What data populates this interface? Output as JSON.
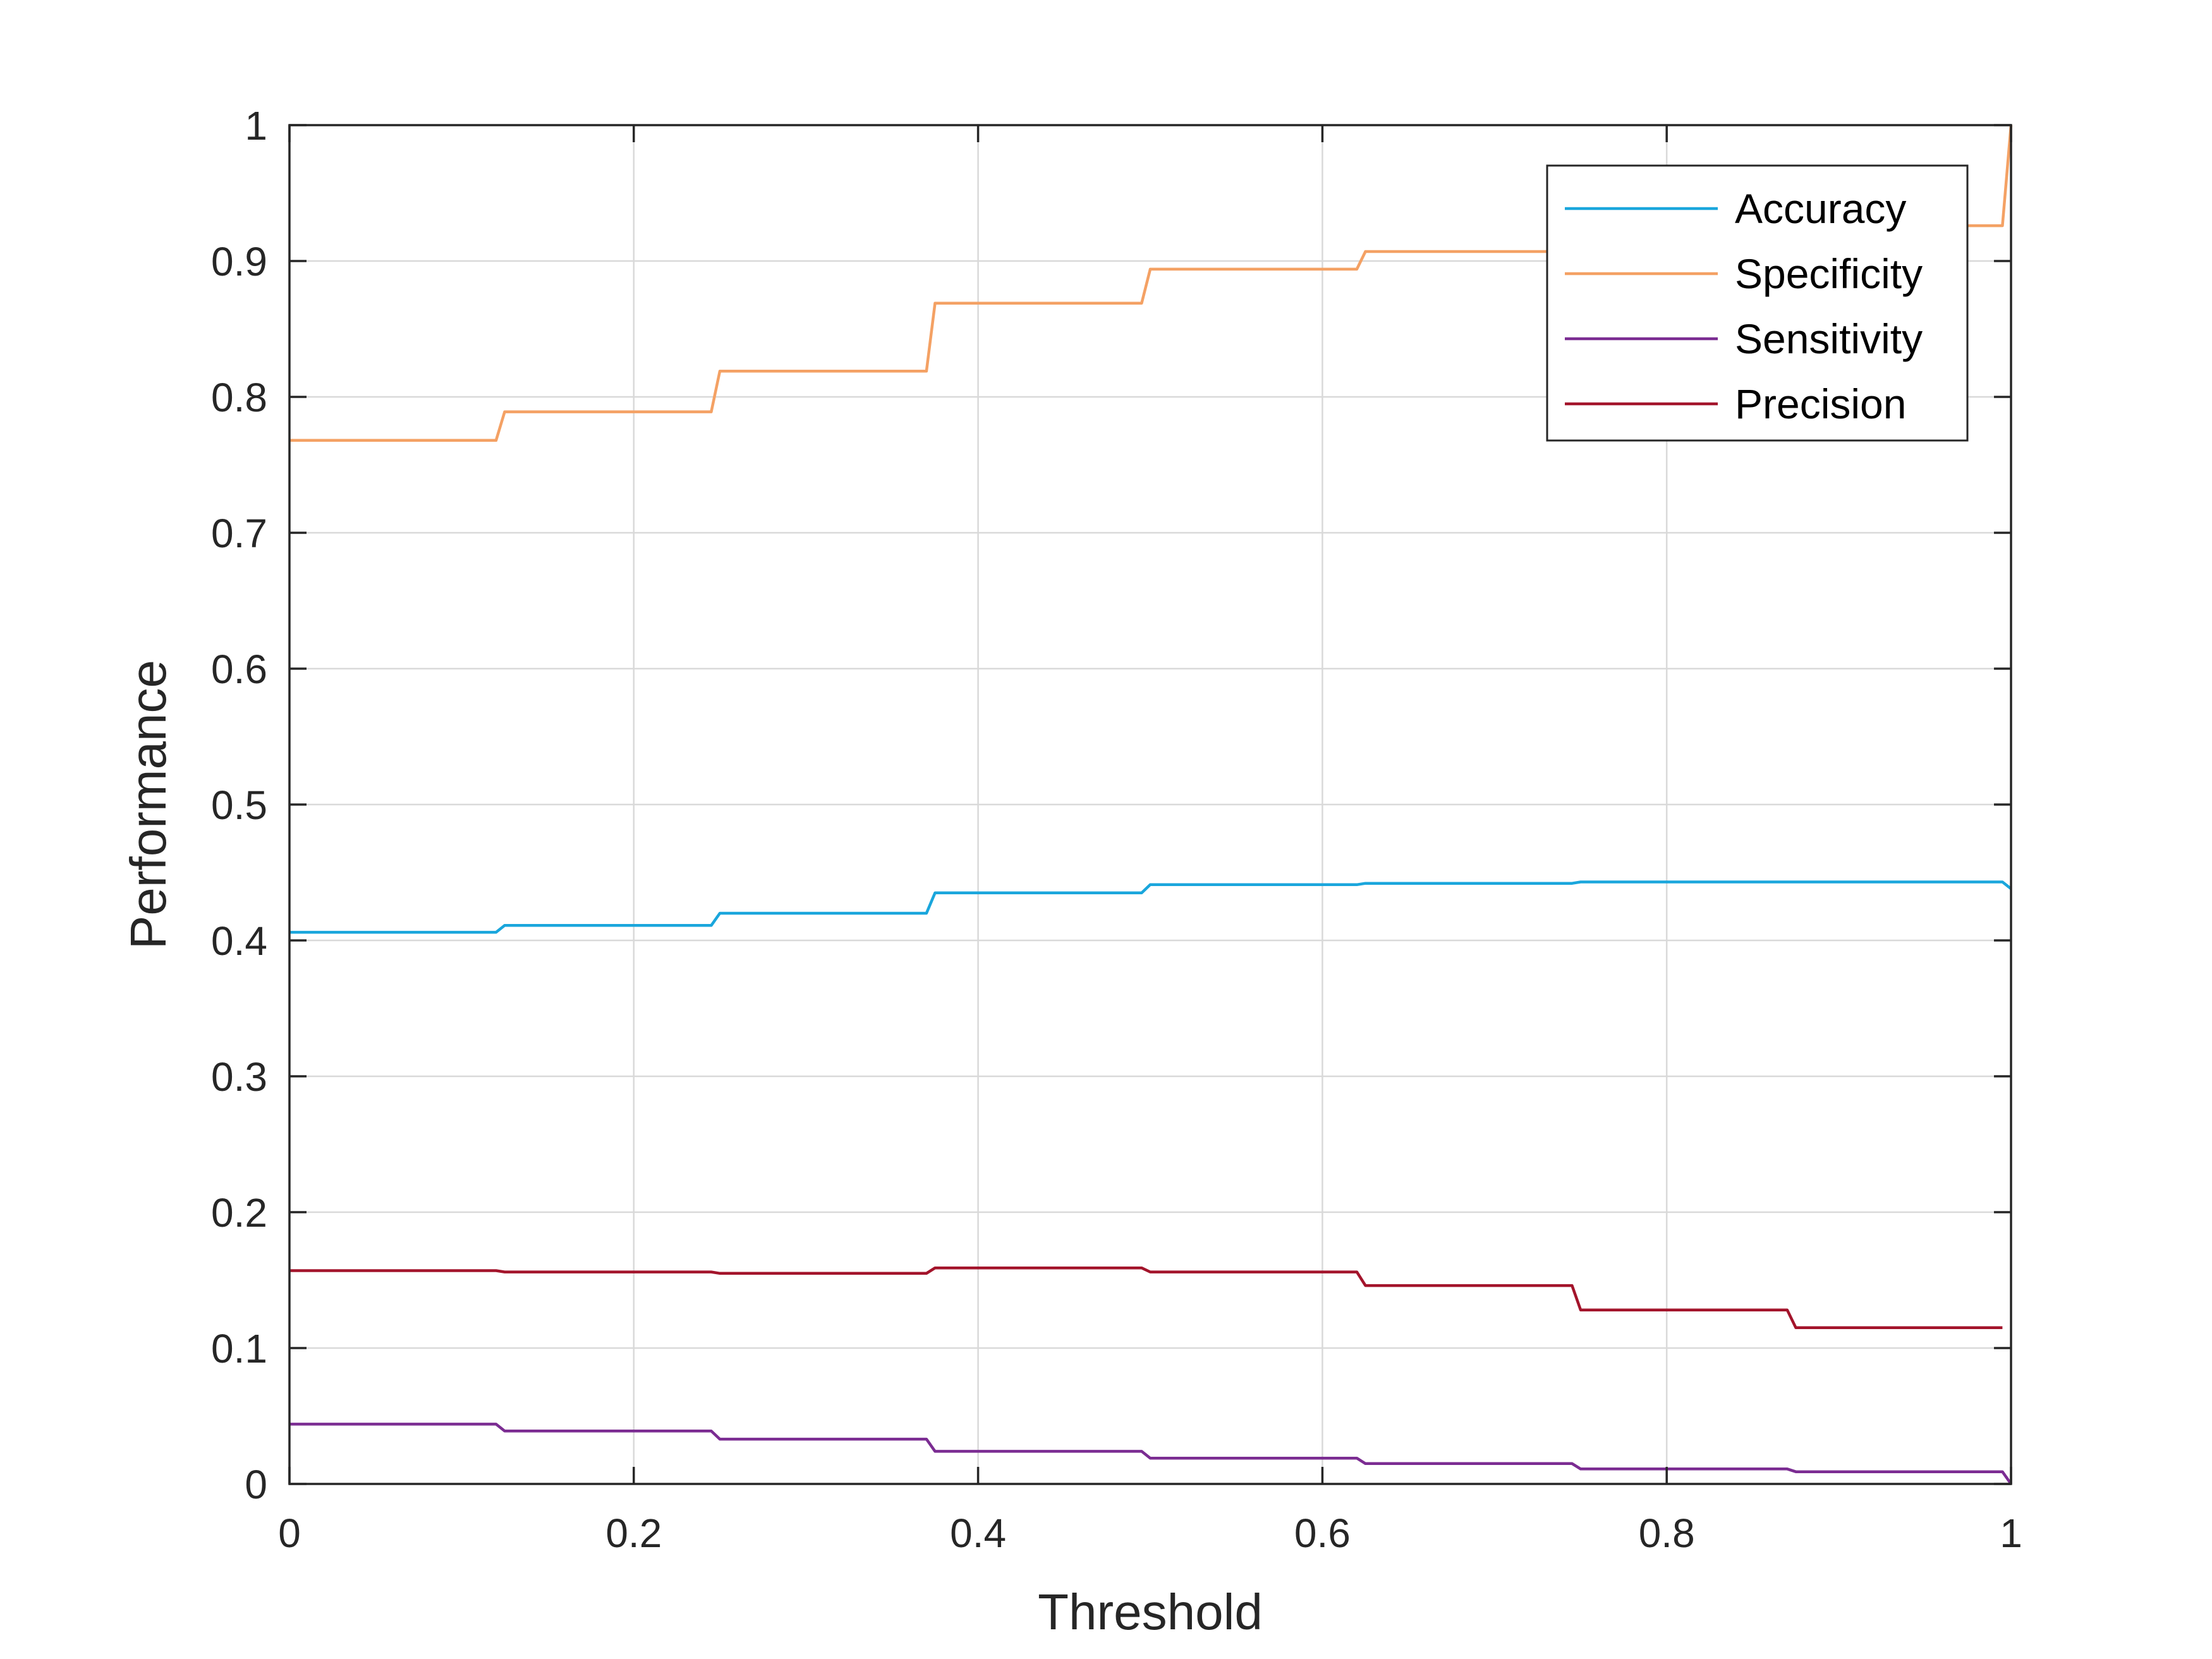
{
  "chart_data": {
    "type": "line",
    "xlabel": "Threshold",
    "ylabel": "Performance",
    "xlim": [
      0,
      1
    ],
    "ylim": [
      0,
      1
    ],
    "x_ticks": [
      "0",
      "0.2",
      "0.4",
      "0.6",
      "0.8",
      "1"
    ],
    "y_ticks": [
      "0",
      "0.1",
      "0.2",
      "0.3",
      "0.4",
      "0.5",
      "0.6",
      "0.7",
      "0.8",
      "0.9",
      "1"
    ],
    "grid": true,
    "legend_position": "top-right",
    "series": [
      {
        "name": "Accuracy",
        "color": "#1aa6dc",
        "x": [
          0,
          0.12,
          0.125,
          0.245,
          0.25,
          0.37,
          0.375,
          0.495,
          0.5,
          0.62,
          0.625,
          0.745,
          0.75,
          0.87,
          0.875,
          0.995,
          1.0
        ],
        "y": [
          0.406,
          0.406,
          0.411,
          0.411,
          0.42,
          0.42,
          0.435,
          0.435,
          0.441,
          0.441,
          0.442,
          0.442,
          0.443,
          0.443,
          0.443,
          0.443,
          0.438
        ]
      },
      {
        "name": "Specificity",
        "color": "#f4a164",
        "x": [
          0,
          0.12,
          0.125,
          0.245,
          0.25,
          0.37,
          0.375,
          0.495,
          0.5,
          0.62,
          0.625,
          0.745,
          0.75,
          0.87,
          0.875,
          0.995,
          1.0
        ],
        "y": [
          0.768,
          0.768,
          0.789,
          0.789,
          0.819,
          0.819,
          0.869,
          0.869,
          0.894,
          0.894,
          0.907,
          0.907,
          0.912,
          0.912,
          0.926,
          0.926,
          1.0
        ]
      },
      {
        "name": "Sensitivity",
        "color": "#7b2c92",
        "x": [
          0,
          0.12,
          0.125,
          0.245,
          0.25,
          0.37,
          0.375,
          0.495,
          0.5,
          0.62,
          0.625,
          0.745,
          0.75,
          0.87,
          0.875,
          0.995,
          1.0
        ],
        "y": [
          0.044,
          0.044,
          0.039,
          0.039,
          0.033,
          0.033,
          0.024,
          0.024,
          0.019,
          0.019,
          0.015,
          0.015,
          0.011,
          0.011,
          0.009,
          0.009,
          0.0
        ]
      },
      {
        "name": "Precision",
        "color": "#a3142b",
        "x": [
          0,
          0.12,
          0.125,
          0.245,
          0.25,
          0.37,
          0.375,
          0.495,
          0.5,
          0.62,
          0.625,
          0.745,
          0.75,
          0.87,
          0.875,
          0.995
        ],
        "y": [
          0.157,
          0.157,
          0.156,
          0.156,
          0.155,
          0.155,
          0.159,
          0.159,
          0.156,
          0.156,
          0.146,
          0.146,
          0.128,
          0.128,
          0.115,
          0.115
        ]
      }
    ]
  }
}
